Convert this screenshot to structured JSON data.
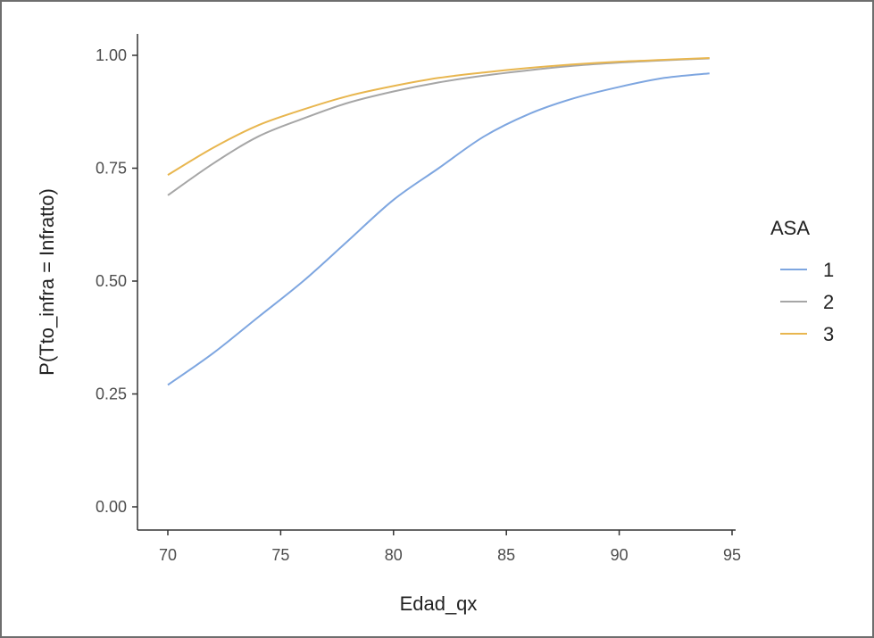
{
  "chart_data": {
    "type": "line",
    "xlabel": "Edad_qx",
    "ylabel": "P(Tto_infra = Infratto)",
    "xlim": [
      70,
      95
    ],
    "ylim": [
      0,
      1
    ],
    "x_ticks": [
      70,
      75,
      80,
      85,
      90,
      95
    ],
    "x_tick_labels": [
      "70",
      "75",
      "80",
      "85",
      "90",
      "95"
    ],
    "y_ticks": [
      0,
      0.25,
      0.5,
      0.75,
      1
    ],
    "y_tick_labels": [
      "0.00",
      "0.25",
      "0.50",
      "0.75",
      "1.00"
    ],
    "grid": false,
    "legend": {
      "title": "ASA",
      "position": "right"
    },
    "x": [
      70,
      72,
      74,
      76,
      78,
      80,
      82,
      84,
      86,
      88,
      90,
      92,
      94
    ],
    "series": [
      {
        "name": "1",
        "color": "#7ea6e0",
        "values": [
          0.27,
          0.34,
          0.42,
          0.5,
          0.59,
          0.68,
          0.75,
          0.82,
          0.87,
          0.905,
          0.93,
          0.95,
          0.96
        ]
      },
      {
        "name": "2",
        "color": "#a6a6a6",
        "values": [
          0.69,
          0.76,
          0.82,
          0.86,
          0.895,
          0.92,
          0.94,
          0.955,
          0.967,
          0.977,
          0.984,
          0.989,
          0.993
        ]
      },
      {
        "name": "3",
        "color": "#e8b64f",
        "values": [
          0.735,
          0.795,
          0.845,
          0.88,
          0.91,
          0.932,
          0.95,
          0.962,
          0.972,
          0.98,
          0.986,
          0.99,
          0.994
        ]
      }
    ]
  }
}
